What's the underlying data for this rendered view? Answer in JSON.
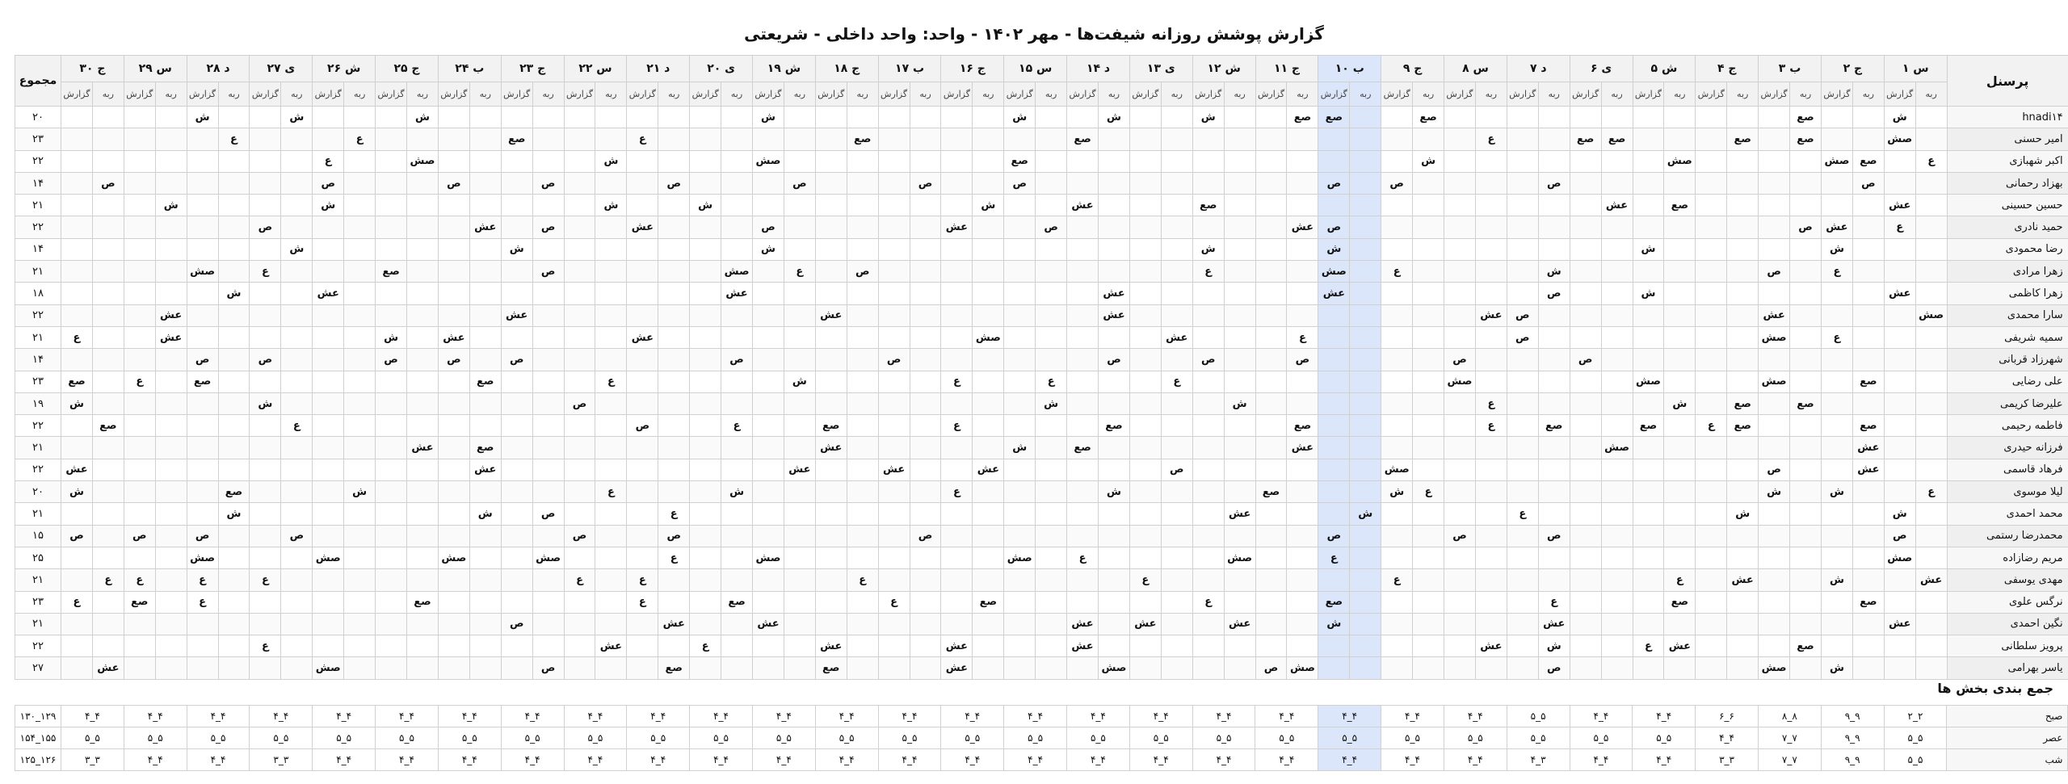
{
  "title": "گزارش پوشش روزانه شیفت‌ها - مهر ۱۴۰۲ - واحد: واحد داخلی - شریعتی",
  "headers": {
    "personnel": "پرسنل",
    "total": "مجموع",
    "sub_a": "ربه",
    "sub_b": "گزارش"
  },
  "highlight_day_index": 9,
  "days": [
    "س ۱",
    "ج ۲",
    "ب ۳",
    "ج ۴",
    "ش ۵",
    "ی ۶",
    "د ۷",
    "س ۸",
    "ج ۹",
    "ب ۱۰",
    "ج ۱۱",
    "ش ۱۲",
    "ی ۱۳",
    "د ۱۴",
    "س ۱۵",
    "ج ۱۶",
    "ب ۱۷",
    "ج ۱۸",
    "ش ۱۹",
    "ی ۲۰",
    "د ۲۱",
    "س ۲۲",
    "ج ۲۳",
    "ب ۲۴",
    "ج ۲۵",
    "ش ۲۶",
    "ی ۲۷",
    "د ۲۸",
    "س ۲۹",
    "ج ۳۰"
  ],
  "rows": [
    {
      "name": "hnadi۱۴",
      "total": "۲۰",
      "cells": {
        "1": "ش",
        "4": "صع",
        "16": "صع",
        "19": "صع",
        "20": "صع",
        "23": "ش",
        "26": "ش",
        "29": "ش",
        "37": "ش",
        "48": "ش",
        "52": "ش",
        "55": "ش"
      }
    },
    {
      "name": "امیر حسنی",
      "total": "۲۳",
      "cells": {
        "1": "صش",
        "4": "صع",
        "6": "صع",
        "10": "صع",
        "11": "صع",
        "14": "ع",
        "27": "صع",
        "34": "صع",
        "41": "ع",
        "45": "صع",
        "50": "ع",
        "54": "ع"
      }
    },
    {
      "name": "اکبر شهبازی",
      "total": "۲۲",
      "cells": {
        "0": "ع",
        "2": "صع",
        "3": "صش",
        "8": "صش",
        "16": "ش",
        "29": "صع",
        "37": "صش",
        "42": "ش",
        "48": "صش",
        "51": "ع"
      }
    },
    {
      "name": "بهزاد رحمانی",
      "total": "۱۴",
      "cells": {
        "2": "ص",
        "12": "ص",
        "17": "ص",
        "19": "ص",
        "29": "ص",
        "32": "ص",
        "36": "ص",
        "40": "ص",
        "44": "ص",
        "47": "ص",
        "51": "ص",
        "58": "ص"
      }
    },
    {
      "name": "حسین حسینی",
      "total": "۲۱",
      "cells": {
        "1": "عش",
        "8": "صع",
        "10": "عش",
        "23": "صع",
        "27": "عش",
        "30": "ش",
        "39": "ش",
        "42": "ش",
        "51": "ش",
        "56": "ش"
      }
    },
    {
      "name": "حمید نادری",
      "total": "۲۲",
      "cells": {
        "1": "ع",
        "3": "عش",
        "4": "ص",
        "19": "ص",
        "20": "عش",
        "28": "ص",
        "31": "عش",
        "37": "ص",
        "41": "عش",
        "44": "ص",
        "46": "عش",
        "53": "ص"
      }
    },
    {
      "name": "رضا محمودی",
      "total": "۱۴",
      "cells": {
        "3": "ش",
        "9": "ش",
        "19": "ش",
        "23": "ش",
        "37": "ش",
        "45": "ش",
        "52": "ش"
      }
    },
    {
      "name": "زهرا مرادی",
      "total": "۲۱",
      "cells": {
        "3": "ع",
        "5": "ص",
        "12": "ش",
        "17": "ع",
        "19": "صش",
        "23": "ع",
        "34": "ص",
        "36": "ع",
        "38": "صش",
        "44": "ص",
        "49": "صع",
        "53": "ع",
        "55": "صش"
      }
    },
    {
      "name": "زهرا کاظمی",
      "total": "۱۸",
      "cells": {
        "1": "عش",
        "9": "ش",
        "12": "ص",
        "19": "عش",
        "26": "عش",
        "38": "عش",
        "51": "عش",
        "54": "ش"
      }
    },
    {
      "name": "سارا محمدی",
      "total": "۲۲",
      "cells": {
        "0": "صش",
        "5": "عش",
        "13": "ص",
        "14": "عش",
        "26": "عش",
        "35": "عش",
        "45": "عش",
        "56": "عش"
      }
    },
    {
      "name": "سمیه شریفی",
      "total": "۲۱",
      "cells": {
        "3": "ع",
        "5": "صش",
        "13": "ص",
        "20": "ع",
        "24": "عش",
        "30": "صش",
        "41": "عش",
        "47": "عش",
        "49": "ش",
        "56": "عش",
        "59": "ع"
      }
    },
    {
      "name": "شهرزاد قربانی",
      "total": "۱۴",
      "cells": {
        "11": "ص",
        "15": "ص",
        "20": "ص",
        "23": "ص",
        "26": "ص",
        "33": "ص",
        "38": "ص",
        "45": "ص",
        "47": "ص",
        "49": "ص",
        "53": "ص",
        "55": "ص"
      }
    },
    {
      "name": "علی رضایی",
      "total": "۲۳",
      "cells": {
        "2": "صع",
        "5": "صش",
        "9": "صش",
        "15": "صش",
        "24": "ع",
        "28": "ع",
        "31": "ع",
        "36": "ش",
        "42": "ع",
        "46": "صع",
        "55": "صع",
        "57": "ع",
        "59": "صع"
      }
    },
    {
      "name": "علیرضا کریمی",
      "total": "۱۹",
      "cells": {
        "4": "صع",
        "6": "صع",
        "8": "ش",
        "14": "ع",
        "22": "ش",
        "28": "ش",
        "43": "ص",
        "53": "ش",
        "59": "ش"
      }
    },
    {
      "name": "فاطمه رحیمی",
      "total": "۲۲",
      "cells": {
        "2": "صع",
        "6": "صع",
        "7": "ع",
        "9": "صع",
        "12": "صع",
        "14": "ع",
        "20": "صع",
        "26": "صع",
        "31": "ع",
        "35": "صع",
        "38": "ع",
        "41": "ص",
        "52": "ع",
        "58": "صع"
      }
    },
    {
      "name": "فرزانه حیدری",
      "total": "۲۱",
      "cells": {
        "2": "عش",
        "10": "صش",
        "20": "عش",
        "27": "صع",
        "29": "ش",
        "35": "عش",
        "46": "صع",
        "48": "عش"
      }
    },
    {
      "name": "فرهاد قاسمی",
      "total": "۲۲",
      "cells": {
        "2": "عش",
        "5": "ص",
        "17": "صش",
        "24": "ص",
        "30": "عش",
        "33": "عش",
        "36": "عش",
        "46": "عش",
        "59": "عش"
      }
    },
    {
      "name": "لیلا موسوی",
      "total": "۲۰",
      "cells": {
        "0": "ع",
        "3": "ش",
        "5": "ش",
        "16": "ع",
        "17": "ش",
        "21": "صع",
        "26": "ش",
        "31": "ع",
        "38": "ش",
        "42": "ع",
        "50": "ش",
        "54": "صع",
        "59": "ش"
      }
    },
    {
      "name": "محمد احمدی",
      "total": "۲۱",
      "cells": {
        "1": "ش",
        "6": "ش",
        "13": "ع",
        "18": "ش",
        "22": "عش",
        "40": "ع",
        "44": "ص",
        "46": "ش",
        "54": "ش"
      }
    },
    {
      "name": "محمدرضا رستمی",
      "total": "۱۵",
      "cells": {
        "1": "ص",
        "12": "ص",
        "15": "ص",
        "19": "ص",
        "32": "ص",
        "40": "ص",
        "43": "ص",
        "52": "ص",
        "55": "ص",
        "57": "ص",
        "59": "ص"
      }
    },
    {
      "name": "مریم رضازاده",
      "total": "۲۵",
      "cells": {
        "1": "صش",
        "19": "ع",
        "22": "صش",
        "27": "ع",
        "29": "صش",
        "37": "صش",
        "40": "ع",
        "44": "صش",
        "47": "صش",
        "51": "صش",
        "55": "صش"
      }
    },
    {
      "name": "مهدی یوسفی",
      "total": "۲۱",
      "cells": {
        "0": "عش",
        "3": "ش",
        "6": "عش",
        "8": "ع",
        "17": "ع",
        "25": "ع",
        "34": "ع",
        "41": "ع",
        "43": "ع",
        "53": "ع",
        "55": "ع",
        "57": "ع",
        "58": "ع"
      }
    },
    {
      "name": "نرگس علوی",
      "total": "۲۳",
      "cells": {
        "2": "صع",
        "8": "صع",
        "12": "ع",
        "19": "صع",
        "23": "ع",
        "30": "صع",
        "33": "ع",
        "38": "صع",
        "41": "ع",
        "48": "صع",
        "55": "ع",
        "57": "صع",
        "59": "ع"
      }
    },
    {
      "name": "نگین احمدی",
      "total": "۲۱",
      "cells": {
        "1": "عش",
        "12": "عش",
        "19": "ش",
        "22": "عش",
        "25": "عش",
        "27": "عش",
        "37": "عش",
        "40": "عش",
        "45": "ص"
      }
    },
    {
      "name": "پرویز سلطانی",
      "total": "۲۲",
      "cells": {
        "4": "صع",
        "8": "عش",
        "9": "ع",
        "14": "عش",
        "12": "ش",
        "27": "عش",
        "31": "عش",
        "35": "عش",
        "39": "ع",
        "42": "عش",
        "53": "ع"
      }
    },
    {
      "name": "یاسر بهرامی",
      "total": "۲۷",
      "cells": {
        "3": "ش",
        "5": "صش",
        "12": "ص",
        "20": "صش",
        "21": "ص",
        "26": "صش",
        "31": "عش",
        "35": "صع",
        "40": "صع",
        "44": "ص",
        "51": "صش",
        "58": "عش"
      }
    }
  ],
  "summary": {
    "title": "جمع بندی بخش ها",
    "rows": [
      {
        "label": "صبح",
        "total": "۱۲۹_۱۳۰",
        "values": [
          "۲_۲",
          "۹_۹",
          "۸_۸",
          "۶_۶",
          "۴_۴",
          "۴_۴",
          "۵_۵",
          "۴_۴",
          "۴_۴",
          "۴_۴",
          "۴_۴",
          "۴_۴",
          "۴_۴",
          "۴_۴",
          "۴_۴",
          "۴_۴",
          "۴_۴",
          "۴_۴",
          "۴_۴",
          "۴_۴",
          "۴_۴",
          "۴_۴",
          "۴_۴",
          "۴_۴",
          "۴_۴",
          "۴_۴",
          "۴_۴",
          "۴_۴",
          "۴_۴",
          "۴_۴"
        ]
      },
      {
        "label": "عصر",
        "total": "۱۵۵_۱۵۴",
        "values": [
          "۵_۵",
          "۹_۹",
          "۷_۷",
          "۴_۴",
          "۵_۵",
          "۵_۵",
          "۵_۵",
          "۵_۵",
          "۵_۵",
          "۵_۵",
          "۵_۵",
          "۵_۵",
          "۵_۵",
          "۵_۵",
          "۵_۵",
          "۵_۵",
          "۵_۵",
          "۵_۵",
          "۵_۵",
          "۵_۵",
          "۵_۵",
          "۵_۵",
          "۵_۵",
          "۵_۵",
          "۵_۵",
          "۵_۵",
          "۵_۵",
          "۵_۵",
          "۵_۵",
          "۵_۵"
        ]
      },
      {
        "label": "شب",
        "total": "۱۲۶_۱۲۵",
        "values": [
          "۵_۵",
          "۹_۹",
          "۷_۷",
          "۳_۳",
          "۴_۴",
          "۴_۴",
          "۳_۴",
          "۴_۴",
          "۴_۴",
          "۴_۴",
          "۴_۴",
          "۴_۴",
          "۴_۴",
          "۴_۴",
          "۴_۴",
          "۴_۴",
          "۴_۴",
          "۴_۴",
          "۴_۴",
          "۴_۴",
          "۴_۴",
          "۴_۴",
          "۴_۴",
          "۴_۴",
          "۴_۴",
          "۴_۴",
          "۳_۳",
          "۴_۴",
          "۴_۴",
          "۳_۳"
        ]
      }
    ]
  }
}
